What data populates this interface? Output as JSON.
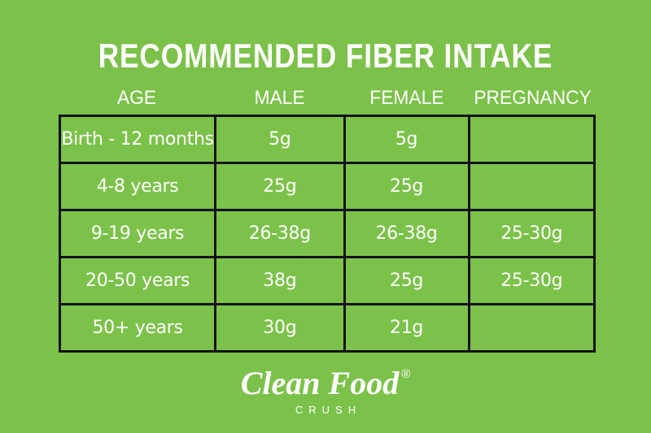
{
  "title": "RECOMMENDED FIBER INTAKE",
  "chart_data": {
    "type": "table",
    "title": "RECOMMENDED FIBER INTAKE",
    "columns": [
      "AGE",
      "MALE",
      "FEMALE",
      "PREGNANCY"
    ],
    "rows": [
      [
        "Birth - 12 months",
        "5g",
        "5g",
        ""
      ],
      [
        "4-8 years",
        "25g",
        "25g",
        ""
      ],
      [
        "9-19 years",
        "26-38g",
        "26-38g",
        "25-30g"
      ],
      [
        "20-50 years",
        "38g",
        "25g",
        "25-30g"
      ],
      [
        "50+ years",
        "30g",
        "21g",
        ""
      ]
    ],
    "layout_hints": {
      "header_outside_borders": true,
      "grid": "black borders around every body cell",
      "units": "grams per day"
    }
  },
  "logo": {
    "brand": "Clean Food",
    "registered": "®",
    "subtitle": "CRUSH"
  },
  "colors": {
    "background": "#7CC24A",
    "text": "#FFFFFF",
    "table_border": "#121212"
  }
}
